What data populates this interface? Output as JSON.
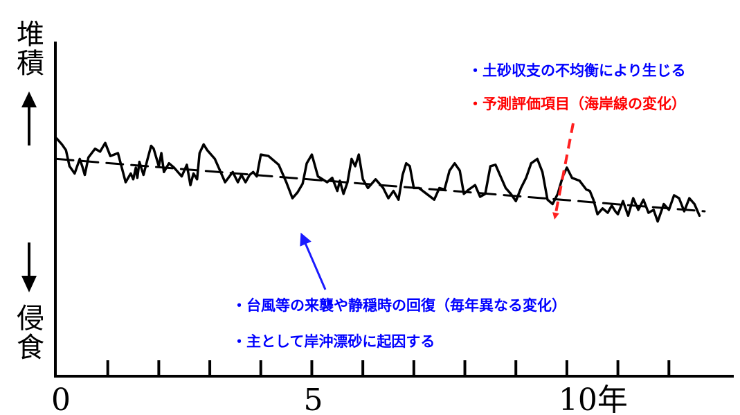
{
  "chart_data": {
    "type": "line",
    "xlabel": "",
    "ylabel_top": "堆積",
    "ylabel_bottom": "侵食",
    "xlim": [
      0,
      13
    ],
    "ylim": [
      0,
      10
    ],
    "x_ticks": [
      0,
      1,
      2,
      3,
      4,
      5,
      6,
      7,
      8,
      9,
      10,
      11,
      12
    ],
    "x_tick_labels": [
      {
        "x": 0,
        "label": "0"
      },
      {
        "x": 5,
        "label": "5"
      },
      {
        "x": 10,
        "label": "10年"
      }
    ],
    "series": [
      {
        "style": "solid",
        "x": [
          0.0,
          0.1,
          0.18,
          0.25,
          0.35,
          0.45,
          0.5,
          0.55,
          0.62,
          0.75,
          0.85,
          0.95,
          1.05,
          1.2,
          1.35,
          1.45,
          1.5,
          1.55,
          1.58,
          1.62,
          1.7,
          1.78,
          1.85,
          1.9,
          2.0,
          2.05,
          2.1,
          2.2,
          2.3,
          2.45,
          2.55,
          2.62,
          2.68,
          2.75,
          2.8,
          2.88,
          2.95,
          3.1,
          3.3,
          3.45,
          3.55,
          3.62,
          3.7,
          3.78,
          3.85,
          3.92,
          4.0,
          4.15,
          4.35,
          4.5,
          4.62,
          4.72,
          4.82,
          4.9,
          5.0,
          5.12,
          5.3,
          5.4,
          5.5,
          5.55,
          5.62,
          5.7,
          5.78,
          5.85,
          5.92,
          6.0,
          6.1,
          6.25,
          6.4,
          6.5,
          6.6,
          6.7,
          6.78,
          6.85,
          6.92,
          7.0,
          7.1,
          7.25,
          7.4,
          7.5,
          7.6,
          7.7,
          7.8,
          7.9,
          7.98,
          8.08,
          8.2,
          8.3,
          8.4,
          8.5,
          8.6,
          8.7,
          8.8,
          8.9,
          9.0,
          9.1,
          9.2,
          9.3,
          9.42,
          9.52,
          9.62,
          9.72,
          9.82,
          9.92,
          10.0,
          10.1,
          10.25,
          10.38,
          10.45,
          10.52,
          10.6,
          10.7,
          10.8,
          10.88,
          10.95,
          11.0,
          11.1,
          11.2,
          11.3,
          11.4,
          11.5,
          11.6,
          11.7,
          11.78,
          11.85,
          11.9,
          12.0,
          12.1,
          12.2,
          12.3,
          12.4,
          12.5,
          12.6
        ],
        "y": [
          10.0,
          9.6,
          9.2,
          8.1,
          7.6,
          8.6,
          8.1,
          7.5,
          8.7,
          9.3,
          9.1,
          9.7,
          8.8,
          9.0,
          7.0,
          7.6,
          7.2,
          8.0,
          7.3,
          8.4,
          7.5,
          8.6,
          9.5,
          9.3,
          8.1,
          9.0,
          7.7,
          8.3,
          8.0,
          7.4,
          8.2,
          6.8,
          7.6,
          7.2,
          9.0,
          9.6,
          9.2,
          8.6,
          7.0,
          7.7,
          7.0,
          7.5,
          7.0,
          7.5,
          7.7,
          7.4,
          8.9,
          8.8,
          8.2,
          7.0,
          5.9,
          6.3,
          6.9,
          8.3,
          8.9,
          7.4,
          7.0,
          7.3,
          6.4,
          7.1,
          6.2,
          7.0,
          8.6,
          8.1,
          8.9,
          7.2,
          6.6,
          7.2,
          6.6,
          5.9,
          6.4,
          5.8,
          7.5,
          8.3,
          8.1,
          6.6,
          6.6,
          6.2,
          5.8,
          6.6,
          6.5,
          7.8,
          8.3,
          7.8,
          6.2,
          6.5,
          6.8,
          6.0,
          6.2,
          8.1,
          8.2,
          7.4,
          6.6,
          6.2,
          5.7,
          6.6,
          7.3,
          8.3,
          8.6,
          7.7,
          5.8,
          5.5,
          6.2,
          7.4,
          8.0,
          7.3,
          7.1,
          6.5,
          6.4,
          5.8,
          4.8,
          5.2,
          4.9,
          5.4,
          5.0,
          4.8,
          5.7,
          4.7,
          5.9,
          5.1,
          5.8,
          4.9,
          5.1,
          4.3,
          5.0,
          5.5,
          5.1,
          6.1,
          5.9,
          5.0,
          5.9,
          5.5,
          4.7
        ]
      },
      {
        "style": "dashed",
        "x": [
          0,
          12.7
        ],
        "y": [
          8.6,
          5.0
        ]
      }
    ],
    "annotations": [
      {
        "text": "・土砂収支の不均衡により生じる",
        "color": "#0000ff"
      },
      {
        "text": "・予測評価項目（海岸線の変化）",
        "color": "#ff0000"
      },
      {
        "text": "・台風等の来襲や静穏時の回復（毎年異なる変化）",
        "color": "#0000ff"
      },
      {
        "text": "・主として岸沖漂砂に起因する",
        "color": "#0000ff"
      }
    ]
  }
}
